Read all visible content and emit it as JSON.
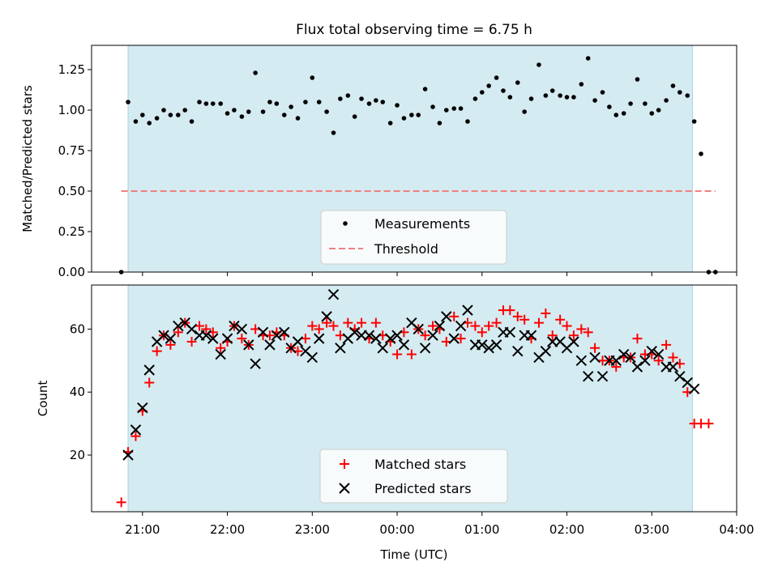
{
  "chart_data": [
    {
      "type": "scatter",
      "title": "Flux total observing time = 6.75 h",
      "xlabel": "",
      "ylabel": "Matched/Predicted stars",
      "x_unit": "UTC time (hours past midnight; negative = evening before)",
      "xlim": [
        -3.6,
        4.0
      ],
      "ylim": [
        0,
        1.4
      ],
      "yticks": [
        "0.00",
        "0.25",
        "0.50",
        "0.75",
        "1.00",
        "1.25"
      ],
      "yticks_values": [
        0,
        0.25,
        0.5,
        0.75,
        1.0,
        1.25
      ],
      "shaded_span": [
        -3.17,
        3.48
      ],
      "shade_color": "#d4ebf1",
      "legend_position": "lower-center",
      "series": [
        {
          "name": "Measurements",
          "color": "#000000",
          "marker": "dot",
          "points": [
            [
              -3.25,
              0.0
            ],
            [
              -3.17,
              1.05
            ],
            [
              -3.08,
              0.93
            ],
            [
              -3.0,
              0.97
            ],
            [
              -2.92,
              0.92
            ],
            [
              -2.83,
              0.95
            ],
            [
              -2.75,
              1.0
            ],
            [
              -2.67,
              0.97
            ],
            [
              -2.58,
              0.97
            ],
            [
              -2.5,
              1.0
            ],
            [
              -2.42,
              0.93
            ],
            [
              -2.33,
              1.05
            ],
            [
              -2.25,
              1.04
            ],
            [
              -2.17,
              1.04
            ],
            [
              -2.08,
              1.04
            ],
            [
              -2.0,
              0.98
            ],
            [
              -1.92,
              1.0
            ],
            [
              -1.83,
              0.96
            ],
            [
              -1.75,
              0.99
            ],
            [
              -1.67,
              1.23
            ],
            [
              -1.58,
              0.99
            ],
            [
              -1.5,
              1.05
            ],
            [
              -1.42,
              1.04
            ],
            [
              -1.33,
              0.97
            ],
            [
              -1.25,
              1.02
            ],
            [
              -1.17,
              0.95
            ],
            [
              -1.08,
              1.05
            ],
            [
              -1.0,
              1.2
            ],
            [
              -0.92,
              1.05
            ],
            [
              -0.83,
              0.99
            ],
            [
              -0.75,
              0.86
            ],
            [
              -0.67,
              1.07
            ],
            [
              -0.58,
              1.09
            ],
            [
              -0.5,
              0.96
            ],
            [
              -0.42,
              1.07
            ],
            [
              -0.33,
              1.04
            ],
            [
              -0.25,
              1.06
            ],
            [
              -0.17,
              1.05
            ],
            [
              -0.08,
              0.92
            ],
            [
              0.0,
              1.03
            ],
            [
              0.08,
              0.95
            ],
            [
              0.17,
              0.97
            ],
            [
              0.25,
              0.97
            ],
            [
              0.33,
              1.13
            ],
            [
              0.42,
              1.02
            ],
            [
              0.5,
              0.92
            ],
            [
              0.58,
              1.0
            ],
            [
              0.67,
              1.01
            ],
            [
              0.75,
              1.01
            ],
            [
              0.83,
              0.93
            ],
            [
              0.92,
              1.07
            ],
            [
              1.0,
              1.11
            ],
            [
              1.08,
              1.15
            ],
            [
              1.17,
              1.2
            ],
            [
              1.25,
              1.12
            ],
            [
              1.33,
              1.08
            ],
            [
              1.42,
              1.17
            ],
            [
              1.5,
              0.99
            ],
            [
              1.58,
              1.07
            ],
            [
              1.67,
              1.28
            ],
            [
              1.75,
              1.09
            ],
            [
              1.83,
              1.12
            ],
            [
              1.92,
              1.09
            ],
            [
              2.0,
              1.08
            ],
            [
              2.08,
              1.08
            ],
            [
              2.17,
              1.16
            ],
            [
              2.25,
              1.32
            ],
            [
              2.33,
              1.06
            ],
            [
              2.42,
              1.11
            ],
            [
              2.5,
              1.02
            ],
            [
              2.58,
              0.97
            ],
            [
              2.67,
              0.98
            ],
            [
              2.75,
              1.04
            ],
            [
              2.83,
              1.19
            ],
            [
              2.92,
              1.04
            ],
            [
              3.0,
              0.98
            ],
            [
              3.08,
              1.0
            ],
            [
              3.17,
              1.06
            ],
            [
              3.25,
              1.15
            ],
            [
              3.33,
              1.11
            ],
            [
              3.42,
              1.09
            ],
            [
              3.5,
              0.93
            ],
            [
              3.58,
              0.73
            ],
            [
              3.67,
              0.0
            ],
            [
              3.75,
              0.0
            ]
          ]
        },
        {
          "name": "Threshold",
          "color": "#f08080",
          "style": "dashed",
          "points": [
            [
              -3.25,
              0.5
            ],
            [
              3.75,
              0.5
            ]
          ]
        }
      ]
    },
    {
      "type": "scatter",
      "title": "",
      "xlabel": "Time (UTC)",
      "ylabel": "Count",
      "x_unit": "UTC time (hours past midnight; negative = evening before)",
      "xlim": [
        -3.6,
        4.0
      ],
      "ylim": [
        2,
        74
      ],
      "xticks": [
        "21:00",
        "22:00",
        "23:00",
        "00:00",
        "01:00",
        "02:00",
        "03:00",
        "04:00"
      ],
      "xticks_values": [
        -3,
        -2,
        -1,
        0,
        1,
        2,
        3,
        4
      ],
      "yticks": [
        "20",
        "40",
        "60"
      ],
      "yticks_values": [
        20,
        40,
        60
      ],
      "shaded_span": [
        -3.17,
        3.48
      ],
      "shade_color": "#d4ebf1",
      "legend_position": "lower-center",
      "series": [
        {
          "name": "Matched stars",
          "color": "#ff0000",
          "marker": "plus",
          "points": [
            [
              -3.25,
              5
            ],
            [
              -3.17,
              21
            ],
            [
              -3.08,
              26
            ],
            [
              -3.0,
              34
            ],
            [
              -2.92,
              43
            ],
            [
              -2.83,
              53
            ],
            [
              -2.75,
              58
            ],
            [
              -2.67,
              55
            ],
            [
              -2.58,
              59
            ],
            [
              -2.5,
              62
            ],
            [
              -2.42,
              56
            ],
            [
              -2.33,
              61
            ],
            [
              -2.25,
              60
            ],
            [
              -2.17,
              59
            ],
            [
              -2.08,
              54
            ],
            [
              -2.0,
              56
            ],
            [
              -1.92,
              61
            ],
            [
              -1.83,
              57
            ],
            [
              -1.75,
              55
            ],
            [
              -1.67,
              60
            ],
            [
              -1.58,
              58
            ],
            [
              -1.5,
              58
            ],
            [
              -1.42,
              59
            ],
            [
              -1.33,
              58
            ],
            [
              -1.25,
              54
            ],
            [
              -1.17,
              53
            ],
            [
              -1.08,
              57
            ],
            [
              -1.0,
              61
            ],
            [
              -0.92,
              60
            ],
            [
              -0.83,
              62
            ],
            [
              -0.75,
              61
            ],
            [
              -0.67,
              58
            ],
            [
              -0.58,
              62
            ],
            [
              -0.5,
              60
            ],
            [
              -0.42,
              62
            ],
            [
              -0.33,
              57
            ],
            [
              -0.25,
              62
            ],
            [
              -0.17,
              58
            ],
            [
              -0.08,
              56
            ],
            [
              0.0,
              52
            ],
            [
              0.08,
              59
            ],
            [
              0.17,
              52
            ],
            [
              0.25,
              60
            ],
            [
              0.33,
              58
            ],
            [
              0.42,
              61
            ],
            [
              0.5,
              60
            ],
            [
              0.58,
              56
            ],
            [
              0.67,
              64
            ],
            [
              0.75,
              57
            ],
            [
              0.83,
              62
            ],
            [
              0.92,
              61
            ],
            [
              1.0,
              59
            ],
            [
              1.08,
              61
            ],
            [
              1.17,
              62
            ],
            [
              1.25,
              66
            ],
            [
              1.33,
              66
            ],
            [
              1.42,
              64
            ],
            [
              1.5,
              63
            ],
            [
              1.58,
              57
            ],
            [
              1.67,
              62
            ],
            [
              1.75,
              65
            ],
            [
              1.83,
              58
            ],
            [
              1.92,
              63
            ],
            [
              2.0,
              61
            ],
            [
              2.08,
              58
            ],
            [
              2.17,
              60
            ],
            [
              2.25,
              59
            ],
            [
              2.33,
              54
            ],
            [
              2.42,
              50
            ],
            [
              2.5,
              50
            ],
            [
              2.58,
              48
            ],
            [
              2.67,
              51
            ],
            [
              2.75,
              51
            ],
            [
              2.83,
              57
            ],
            [
              2.92,
              52
            ],
            [
              3.0,
              52
            ],
            [
              3.08,
              50
            ],
            [
              3.17,
              55
            ],
            [
              3.25,
              51
            ],
            [
              3.33,
              49
            ],
            [
              3.42,
              40
            ],
            [
              3.5,
              30
            ],
            [
              3.58,
              30
            ],
            [
              3.67,
              30
            ]
          ]
        },
        {
          "name": "Predicted stars",
          "color": "#000000",
          "marker": "x",
          "points": [
            [
              -3.17,
              20
            ],
            [
              -3.08,
              28
            ],
            [
              -3.0,
              35
            ],
            [
              -2.92,
              47
            ],
            [
              -2.83,
              56
            ],
            [
              -2.75,
              58
            ],
            [
              -2.67,
              57
            ],
            [
              -2.58,
              61
            ],
            [
              -2.5,
              62
            ],
            [
              -2.42,
              60
            ],
            [
              -2.33,
              58
            ],
            [
              -2.25,
              58
            ],
            [
              -2.17,
              57
            ],
            [
              -2.08,
              52
            ],
            [
              -2.0,
              57
            ],
            [
              -1.92,
              61
            ],
            [
              -1.83,
              60
            ],
            [
              -1.75,
              55
            ],
            [
              -1.67,
              49
            ],
            [
              -1.58,
              59
            ],
            [
              -1.5,
              55
            ],
            [
              -1.42,
              58
            ],
            [
              -1.33,
              59
            ],
            [
              -1.25,
              54
            ],
            [
              -1.17,
              56
            ],
            [
              -1.08,
              53
            ],
            [
              -1.0,
              51
            ],
            [
              -0.92,
              57
            ],
            [
              -0.83,
              64
            ],
            [
              -0.75,
              71
            ],
            [
              -0.67,
              54
            ],
            [
              -0.58,
              57
            ],
            [
              -0.5,
              59
            ],
            [
              -0.42,
              58
            ],
            [
              -0.33,
              58
            ],
            [
              -0.25,
              57
            ],
            [
              -0.17,
              54
            ],
            [
              -0.08,
              57
            ],
            [
              0.0,
              58
            ],
            [
              0.08,
              55
            ],
            [
              0.17,
              62
            ],
            [
              0.25,
              60
            ],
            [
              0.33,
              54
            ],
            [
              0.42,
              58
            ],
            [
              0.5,
              61
            ],
            [
              0.58,
              64
            ],
            [
              0.67,
              57
            ],
            [
              0.75,
              61
            ],
            [
              0.83,
              66
            ],
            [
              0.92,
              55
            ],
            [
              1.0,
              55
            ],
            [
              1.08,
              54
            ],
            [
              1.17,
              55
            ],
            [
              1.25,
              59
            ],
            [
              1.33,
              59
            ],
            [
              1.42,
              53
            ],
            [
              1.5,
              58
            ],
            [
              1.58,
              58
            ],
            [
              1.67,
              51
            ],
            [
              1.75,
              53
            ],
            [
              1.83,
              56
            ],
            [
              1.92,
              56
            ],
            [
              2.0,
              54
            ],
            [
              2.08,
              56
            ],
            [
              2.17,
              50
            ],
            [
              2.25,
              45
            ],
            [
              2.33,
              51
            ],
            [
              2.42,
              45
            ],
            [
              2.5,
              50
            ],
            [
              2.58,
              50
            ],
            [
              2.67,
              52
            ],
            [
              2.75,
              51
            ],
            [
              2.83,
              48
            ],
            [
              2.92,
              50
            ],
            [
              3.0,
              53
            ],
            [
              3.08,
              52
            ],
            [
              3.17,
              48
            ],
            [
              3.25,
              48
            ],
            [
              3.33,
              45
            ],
            [
              3.42,
              43
            ],
            [
              3.5,
              41
            ]
          ]
        }
      ]
    }
  ]
}
